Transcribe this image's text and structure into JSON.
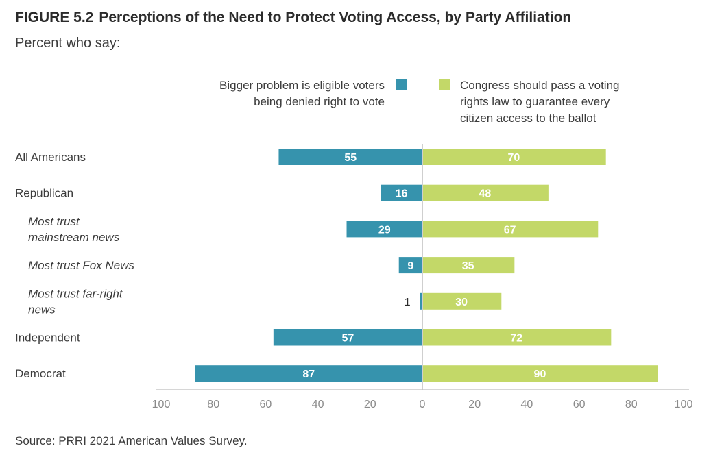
{
  "header": {
    "figure_label": "FIGURE 5.2",
    "title": "Perceptions of the Need to Protect Voting Access, by Party Affiliation",
    "subtitle": "Percent who say:"
  },
  "legend": {
    "left_line1": "Bigger problem is eligible voters",
    "left_line2": "being denied right to vote",
    "right_line1": "Congress should pass a voting",
    "right_line2": "rights law to guarantee every",
    "right_line3": "citizen access to the ballot"
  },
  "source": "Source: PRRI 2021 American Values Survey.",
  "colors": {
    "left": "#3693ad",
    "right": "#c3d868",
    "axis": "#bdbdbd",
    "center": "#cfcfcf"
  },
  "chart_data": {
    "type": "bar",
    "orientation": "horizontal-diverging",
    "categories": [
      {
        "lines": [
          "All Americans"
        ],
        "italic": false
      },
      {
        "lines": [
          "Republican"
        ],
        "italic": false
      },
      {
        "lines": [
          "Most trust",
          "mainstream news"
        ],
        "italic": true
      },
      {
        "lines": [
          "Most trust Fox News"
        ],
        "italic": true
      },
      {
        "lines": [
          "Most trust far-right",
          "news"
        ],
        "italic": true
      },
      {
        "lines": [
          "Independent"
        ],
        "italic": false
      },
      {
        "lines": [
          "Democrat"
        ],
        "italic": false
      }
    ],
    "series": [
      {
        "name": "Bigger problem is eligible voters being denied right to vote",
        "side": "left",
        "values": [
          55,
          16,
          29,
          9,
          1,
          57,
          87
        ]
      },
      {
        "name": "Congress should pass a voting rights law to guarantee every citizen access to the ballot",
        "side": "right",
        "values": [
          70,
          48,
          67,
          35,
          30,
          72,
          90
        ]
      }
    ],
    "xlim": [
      -100,
      100
    ],
    "ticks": [
      {
        "value": -100,
        "label": "100"
      },
      {
        "value": -80,
        "label": "80"
      },
      {
        "value": -60,
        "label": "60"
      },
      {
        "value": -40,
        "label": "40"
      },
      {
        "value": -20,
        "label": "20"
      },
      {
        "value": 0,
        "label": "0"
      },
      {
        "value": 20,
        "label": "20"
      },
      {
        "value": 40,
        "label": "40"
      },
      {
        "value": 60,
        "label": "60"
      },
      {
        "value": 80,
        "label": "80"
      },
      {
        "value": 100,
        "label": "100"
      }
    ],
    "grid": false,
    "legend_position": "top"
  }
}
